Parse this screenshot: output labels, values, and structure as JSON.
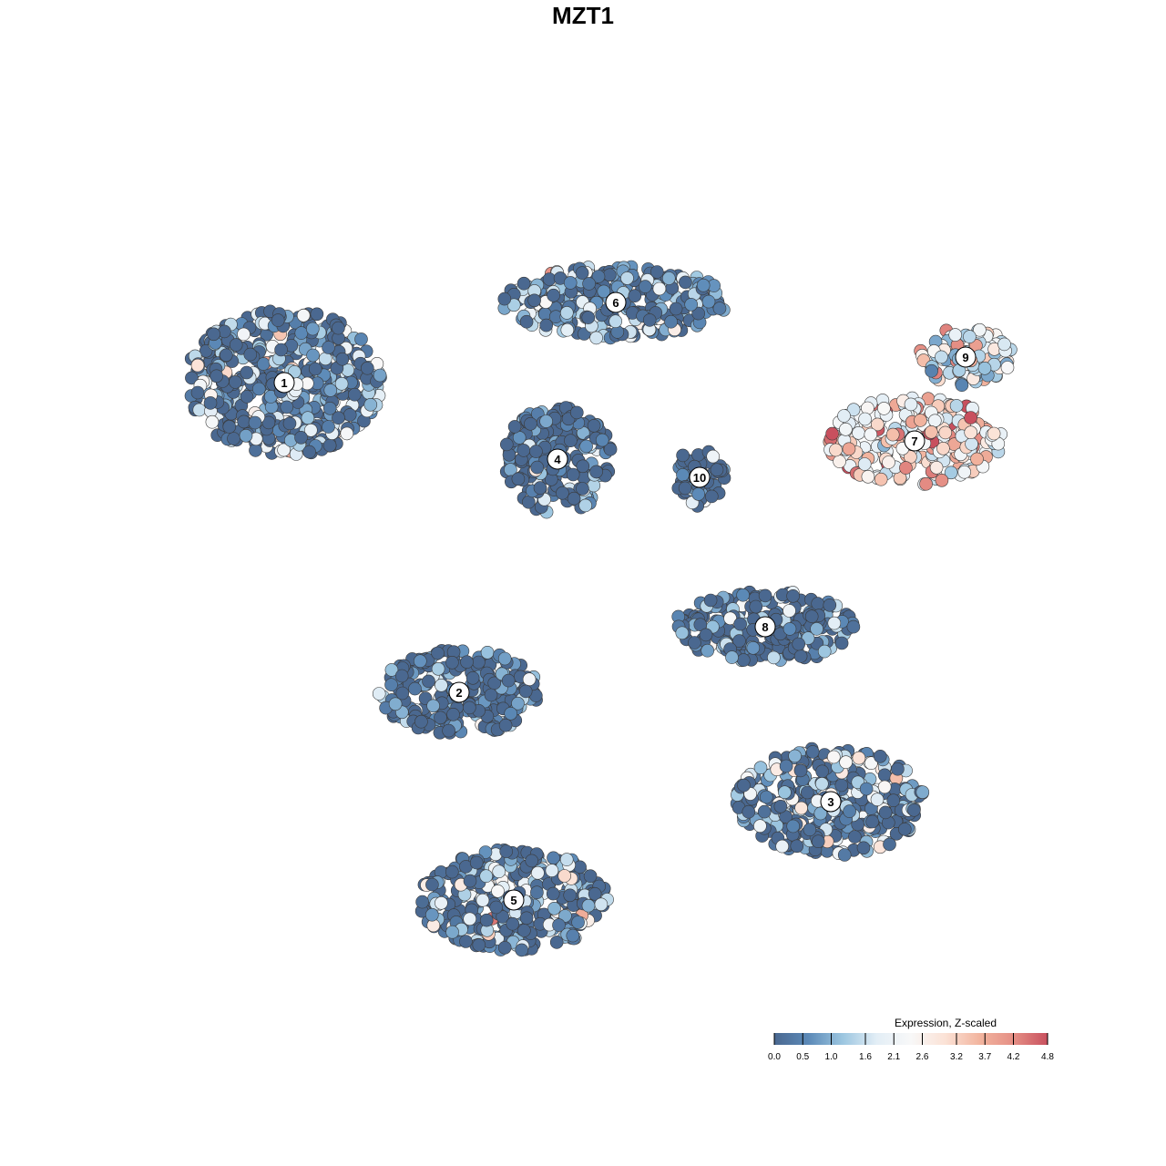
{
  "title": "MZT1",
  "chart_data": {
    "type": "scatter",
    "title": "MZT1",
    "xlabel": "",
    "ylabel": "",
    "axes_visible": false,
    "grid": false,
    "color_scale": {
      "label": "Expression, Z-scaled",
      "min": 0.0,
      "max": 4.8,
      "ticks": [
        "0.0",
        "0.5",
        "1.0",
        "1.6",
        "2.1",
        "2.6",
        "3.2",
        "3.7",
        "4.2",
        "4.8"
      ],
      "tick_values": [
        0.0,
        0.5,
        1.0,
        1.6,
        2.1,
        2.6,
        3.2,
        3.7,
        4.2,
        4.8
      ],
      "colors": [
        "#4a6890",
        "#5c8ab8",
        "#9cc6e0",
        "#e3eef6",
        "#f8f8f8",
        "#fbe2d6",
        "#f2b59f",
        "#e58f85",
        "#c8505e"
      ],
      "placement": "bottom-right"
    },
    "clusters": [
      {
        "label": "1",
        "x": -0.82,
        "y": 0.55,
        "rx": 0.27,
        "ry": 0.2,
        "expr": 1.1
      },
      {
        "label": "2",
        "x": -0.34,
        "y": -0.3,
        "rx": 0.22,
        "ry": 0.12,
        "expr": 0.5
      },
      {
        "label": "3",
        "x": 0.68,
        "y": -0.6,
        "rx": 0.26,
        "ry": 0.15,
        "expr": 1.3
      },
      {
        "label": "4",
        "x": -0.07,
        "y": 0.34,
        "rx": 0.15,
        "ry": 0.15,
        "expr": 0.35
      },
      {
        "label": "5",
        "x": -0.19,
        "y": -0.87,
        "rx": 0.26,
        "ry": 0.14,
        "expr": 1.2
      },
      {
        "label": "6",
        "x": 0.09,
        "y": 0.77,
        "rx": 0.31,
        "ry": 0.1,
        "expr": 1.2
      },
      {
        "label": "7",
        "x": 0.91,
        "y": 0.39,
        "rx": 0.24,
        "ry": 0.12,
        "expr": 3.4
      },
      {
        "label": "8",
        "x": 0.5,
        "y": -0.12,
        "rx": 0.25,
        "ry": 0.1,
        "expr": 0.6
      },
      {
        "label": "9",
        "x": 1.05,
        "y": 0.62,
        "rx": 0.13,
        "ry": 0.08,
        "expr": 2.6
      },
      {
        "label": "10",
        "x": 0.32,
        "y": 0.29,
        "rx": 0.07,
        "ry": 0.08,
        "expr": 0.4
      }
    ]
  }
}
